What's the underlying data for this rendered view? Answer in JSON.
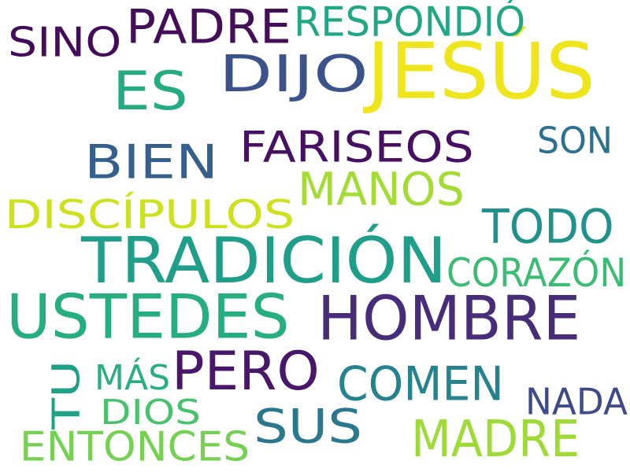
{
  "words": [
    {
      "text": "JESÚS",
      "color": "#efe51c"
    },
    {
      "text": "HOMBRE",
      "color": "#472c7a"
    },
    {
      "text": "TRADICIÓN",
      "color": "#1f9e89"
    },
    {
      "text": "USTEDES",
      "color": "#26ad81"
    },
    {
      "text": "PERO",
      "color": "#481769"
    },
    {
      "text": "DIJO",
      "color": "#3b528b"
    },
    {
      "text": "ES",
      "color": "#25ab82"
    },
    {
      "text": "PADRE",
      "color": "#440f58"
    },
    {
      "text": "SUS",
      "color": "#2a788e"
    },
    {
      "text": "MADRE",
      "color": "#a0da39"
    },
    {
      "text": "COMEN",
      "color": "#26828e"
    },
    {
      "text": "BIEN",
      "color": "#355f8d"
    },
    {
      "text": "MANOS",
      "color": "#a5db36"
    },
    {
      "text": "TODO",
      "color": "#21918c"
    },
    {
      "text": "FARISEOS",
      "color": "#471063"
    },
    {
      "text": "ENTONCES",
      "color": "#75d054"
    },
    {
      "text": "DISCÍPULOS",
      "color": "#cde11d"
    },
    {
      "text": "CORAZÓN",
      "color": "#3cbb75"
    },
    {
      "text": "RESPONDIÓ",
      "color": "#22a785"
    },
    {
      "text": "SINO",
      "color": "#450b5b"
    },
    {
      "text": "SON",
      "color": "#2c728e"
    },
    {
      "text": "NADA",
      "color": "#3e4a89"
    },
    {
      "text": "DIOS",
      "color": "#4ac16d"
    },
    {
      "text": "MÁS",
      "color": "#29af7f"
    },
    {
      "text": "TU",
      "color": "#1fa187"
    }
  ]
}
